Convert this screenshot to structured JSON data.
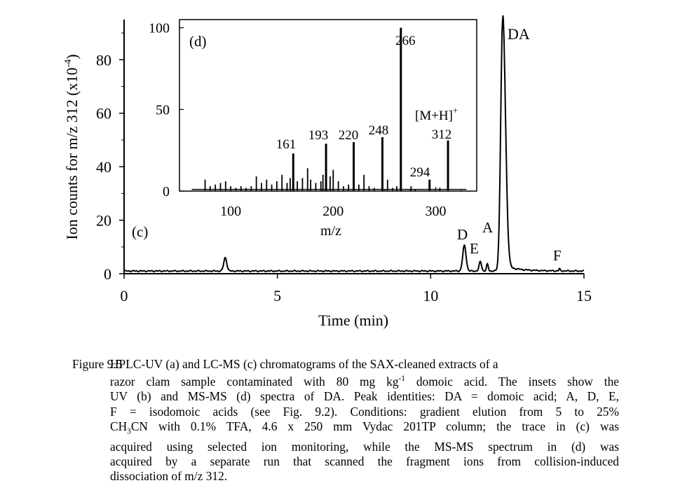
{
  "chart_data": [
    {
      "panel": "(c)",
      "type": "line",
      "xlabel": "Time (min)",
      "ylabel": "Ion counts for m/z 312 (x10-4)",
      "xlim": [
        0,
        15
      ],
      "ylim": [
        0,
        95
      ],
      "xticks": [
        0,
        5,
        10,
        15
      ],
      "yticks": [
        0,
        20,
        40,
        60,
        80
      ],
      "baseline": 1,
      "peaks": [
        {
          "x": 3.3,
          "y": 6,
          "label": ""
        },
        {
          "x": 11.1,
          "y": 10.5,
          "label": "D"
        },
        {
          "x": 11.62,
          "y": 4.5,
          "label": "E"
        },
        {
          "x": 11.85,
          "y": 3.5,
          "label": "A"
        },
        {
          "x": 12.35,
          "y": 95,
          "label": "DA"
        },
        {
          "x": 14.2,
          "y": 1.8,
          "label": "F"
        }
      ],
      "labels": {
        "panel": "(c)",
        "da": "DA",
        "d": "D",
        "e": "E",
        "a": "A",
        "f": "F"
      }
    },
    {
      "panel": "(d)",
      "type": "bar",
      "xlabel": "m/z",
      "xlim": [
        50,
        340
      ],
      "ylim": [
        0,
        105
      ],
      "xticks": [
        100,
        200,
        300
      ],
      "yticks": [
        0,
        50,
        100
      ],
      "peaks": [
        {
          "mz": 161,
          "y": 23
        },
        {
          "mz": 193,
          "y": 29
        },
        {
          "mz": 220,
          "y": 30
        },
        {
          "mz": 248,
          "y": 33
        },
        {
          "mz": 266,
          "y": 100
        },
        {
          "mz": 294,
          "y": 7
        },
        {
          "mz": 312,
          "y": 31
        }
      ],
      "minor_peaks": [
        {
          "mz": 75,
          "y": 7
        },
        {
          "mz": 80,
          "y": 3
        },
        {
          "mz": 85,
          "y": 4
        },
        {
          "mz": 90,
          "y": 5
        },
        {
          "mz": 95,
          "y": 6
        },
        {
          "mz": 100,
          "y": 3
        },
        {
          "mz": 105,
          "y": 2
        },
        {
          "mz": 110,
          "y": 3
        },
        {
          "mz": 115,
          "y": 2
        },
        {
          "mz": 120,
          "y": 3
        },
        {
          "mz": 125,
          "y": 9
        },
        {
          "mz": 130,
          "y": 5
        },
        {
          "mz": 135,
          "y": 7
        },
        {
          "mz": 140,
          "y": 4
        },
        {
          "mz": 145,
          "y": 6
        },
        {
          "mz": 150,
          "y": 10
        },
        {
          "mz": 155,
          "y": 5
        },
        {
          "mz": 158,
          "y": 8
        },
        {
          "mz": 165,
          "y": 6
        },
        {
          "mz": 170,
          "y": 8
        },
        {
          "mz": 175,
          "y": 14
        },
        {
          "mz": 178,
          "y": 7
        },
        {
          "mz": 183,
          "y": 5
        },
        {
          "mz": 188,
          "y": 6
        },
        {
          "mz": 190,
          "y": 10
        },
        {
          "mz": 197,
          "y": 9
        },
        {
          "mz": 200,
          "y": 13
        },
        {
          "mz": 205,
          "y": 6
        },
        {
          "mz": 210,
          "y": 3
        },
        {
          "mz": 215,
          "y": 4
        },
        {
          "mz": 225,
          "y": 4
        },
        {
          "mz": 230,
          "y": 10
        },
        {
          "mz": 235,
          "y": 3
        },
        {
          "mz": 240,
          "y": 2
        },
        {
          "mz": 253,
          "y": 7
        },
        {
          "mz": 258,
          "y": 2
        },
        {
          "mz": 262,
          "y": 3
        },
        {
          "mz": 276,
          "y": 3
        },
        {
          "mz": 280,
          "y": 1
        },
        {
          "mz": 304,
          "y": 2
        }
      ],
      "labels": {
        "panel": "(d)",
        "p161": "161",
        "p193": "193",
        "p220": "220",
        "p248": "248",
        "p266": "266",
        "p294": "294",
        "p312": "312",
        "ion": "[M+H]",
        "ion_sup": "+"
      }
    }
  ],
  "caption": {
    "fig_num": "Figure 9.5",
    "line1": "HPLC-UV (a) and LC-MS (c) chromatograms of the SAX-cleaned extracts of a",
    "line2a": "razor clam sample contaminated with 80 mg kg",
    "line2sup": "-1",
    "line2b": " domoic acid. The insets show the",
    "line3": "UV (b) and MS-MS (d) spectra of DA. Peak identities: DA = domoic acid; A, D, E,",
    "line4": "F = isodomoic acids (see Fig. 9.2). Conditions: gradient elution from 5 to 25%",
    "line5a": "CH",
    "line5sub": "3",
    "line5b": "CN with 0.1% TFA, 4.6 x 250 mm Vydac 201TP column; the trace in (c) was",
    "line6": "acquired using selected ion monitoring, while the MS-MS spectrum in (d) was",
    "line7": "acquired by a separate run that scanned the fragment ions from collision-induced",
    "line8": "dissociation of m/z 312."
  },
  "ylabel_parts": {
    "main": "Ion counts for m/z 312 (x10",
    "sup": "-4",
    "end": ")"
  }
}
